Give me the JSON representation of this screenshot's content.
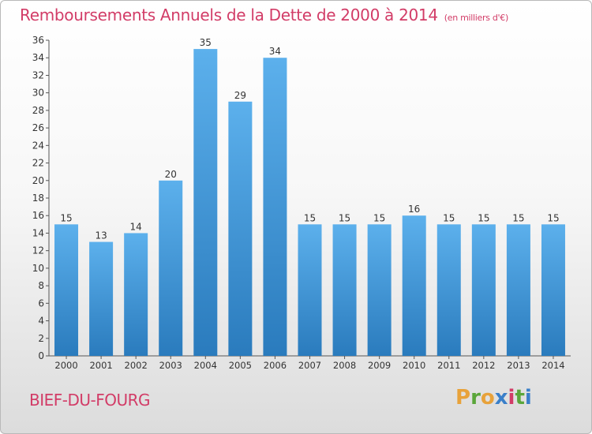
{
  "title": "Remboursements Annuels de la Dette de 2000 à 2014",
  "unit": "(en milliers d'€)",
  "place": "BIEF-DU-FOURG",
  "logo": {
    "text": "Proxiti",
    "letters": [
      "P",
      "r",
      "o",
      "x",
      "i",
      "t",
      "i"
    ],
    "colors": [
      "#e8a23a",
      "#5aa63a",
      "#e8a23a",
      "#3a7fc9",
      "#d23c67",
      "#5aa63a",
      "#3a7fc9"
    ]
  },
  "colors": {
    "title": "#d23c67",
    "bar_light": "#5aaeea",
    "bar_dark": "#2c7ec0"
  },
  "chart_data": {
    "type": "bar",
    "title": "Remboursements Annuels de la Dette de 2000 à 2014",
    "subtitle": "(en milliers d'€)",
    "categories": [
      "2000",
      "2001",
      "2002",
      "2003",
      "2004",
      "2005",
      "2006",
      "2007",
      "2008",
      "2009",
      "2010",
      "2011",
      "2012",
      "2013",
      "2014"
    ],
    "values": [
      15,
      13,
      14,
      20,
      35,
      29,
      34,
      15,
      15,
      15,
      16,
      15,
      15,
      15,
      15
    ],
    "ylim": [
      0,
      36
    ],
    "yticks": [
      0,
      2,
      4,
      6,
      8,
      10,
      12,
      14,
      16,
      18,
      20,
      22,
      24,
      26,
      28,
      30,
      32,
      34,
      36
    ],
    "grid": false,
    "legend": "none"
  }
}
